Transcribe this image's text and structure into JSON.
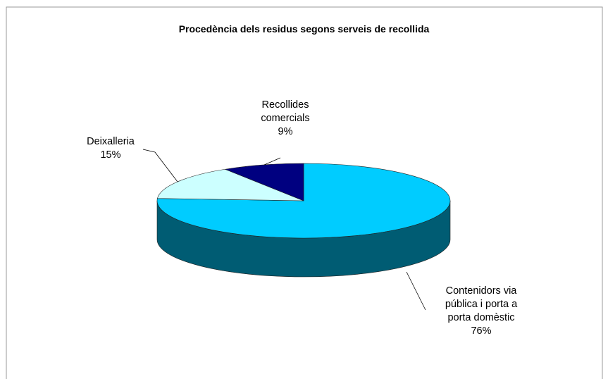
{
  "chart_data": {
    "type": "pie",
    "title": "Procedència dels residus segons serveis de recollida",
    "categories": [
      "Contenidors via pública i porta a porta domèstic",
      "Deixalleria",
      "Recollides comercials"
    ],
    "values": [
      76,
      15,
      9
    ],
    "value_labels": [
      "76%",
      "15%",
      "9%"
    ],
    "colors": [
      "#00ccff",
      "#ccffff",
      "#000080"
    ],
    "three_d": true
  }
}
